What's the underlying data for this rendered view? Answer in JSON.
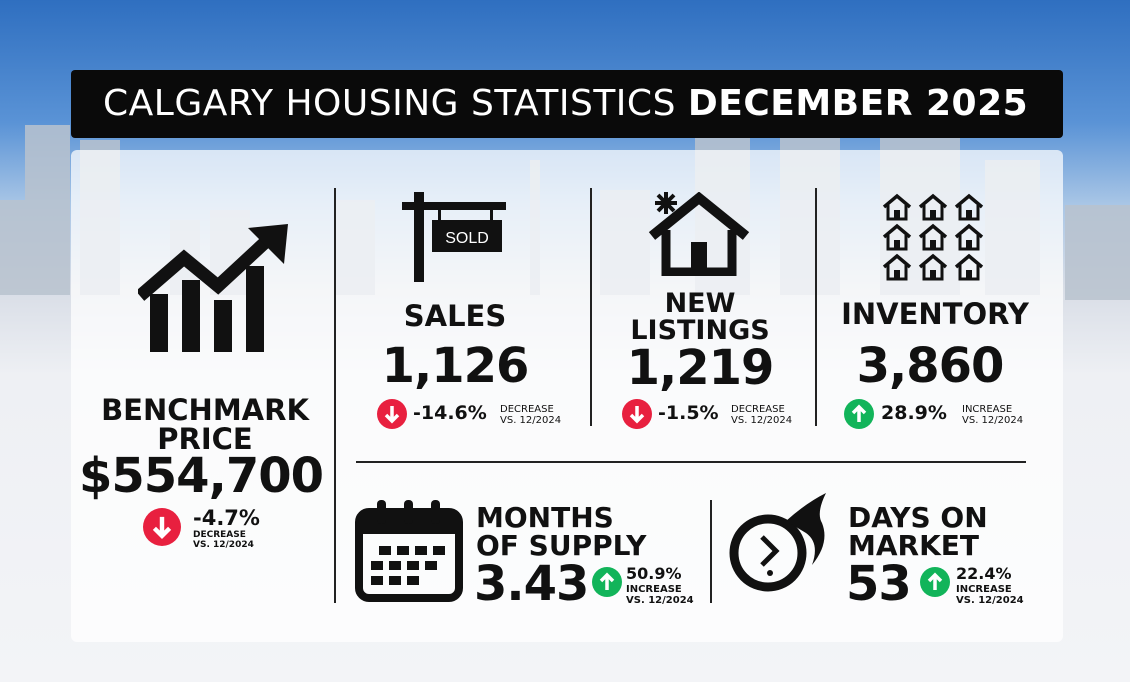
{
  "title": {
    "prefix": "CALGARY HOUSING STATISTICS",
    "emphasis": "DECEMBER 2025"
  },
  "colors": {
    "decrease": "#e8203f",
    "increase": "#12b45a",
    "title_bg": "#0a0a0a"
  },
  "benchmark": {
    "label_line1": "BENCHMARK",
    "label_line2": "PRICE",
    "value": "$554,700",
    "change": "-4.7%",
    "direction": "DECREASE",
    "compare": "VS. 12/2024",
    "icon": "rising-bar-chart-icon"
  },
  "sales": {
    "sign_text": "SOLD",
    "label": "SALES",
    "value": "1,126",
    "change": "-14.6%",
    "direction": "DECREASE",
    "compare": "VS. 12/2024",
    "icon": "sold-sign-icon"
  },
  "new_listings": {
    "label_line1": "NEW",
    "label_line2": "LISTINGS",
    "value": "1,219",
    "change": "-1.5%",
    "direction": "DECREASE",
    "compare": "VS. 12/2024",
    "icon": "house-sparkle-icon"
  },
  "inventory": {
    "label": "INVENTORY",
    "value": "3,860",
    "change": "28.9%",
    "direction": "INCREASE",
    "compare": "VS. 12/2024",
    "icon": "houses-grid-icon"
  },
  "months_supply": {
    "label_line1": "MONTHS",
    "label_line2": "OF SUPPLY",
    "value": "3.43",
    "change": "50.9%",
    "direction": "INCREASE",
    "compare": "VS. 12/2024",
    "icon": "calendar-icon"
  },
  "days_on_market": {
    "label_line1": "DAYS ON",
    "label_line2": "MARKET",
    "value": "53",
    "change": "22.4%",
    "direction": "INCREASE",
    "compare": "VS. 12/2024",
    "icon": "fast-clock-icon"
  }
}
